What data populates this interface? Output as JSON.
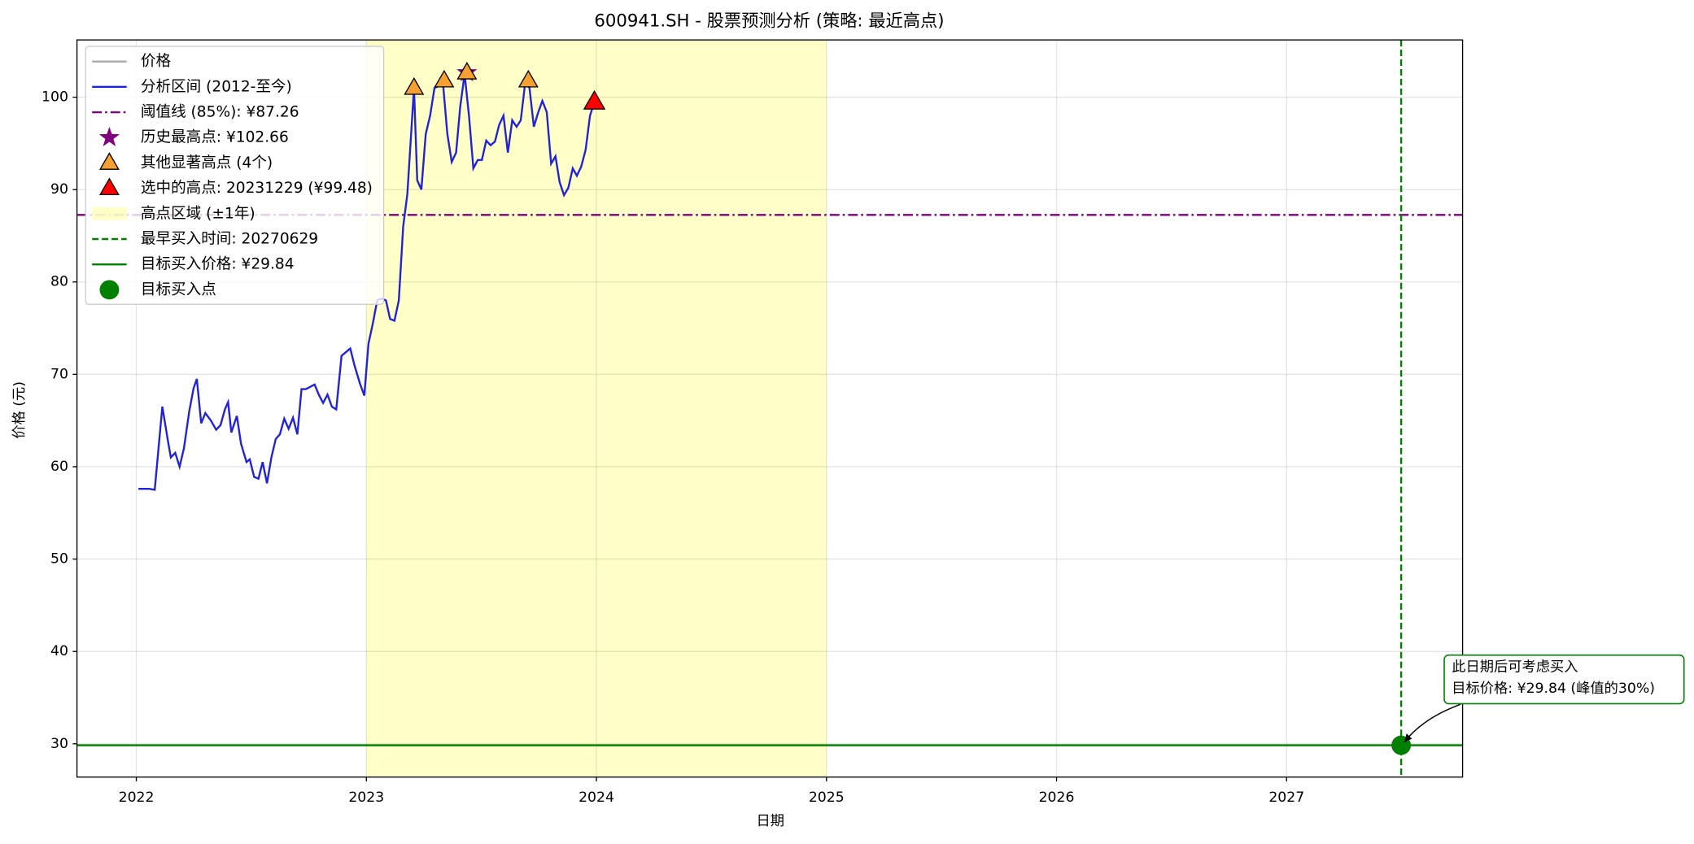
{
  "chart_data": {
    "type": "line",
    "title": "600941.SH  - 股票预测分析 (策略: 最近高点)",
    "xlabel": "日期",
    "ylabel": "价格 (元)",
    "xlim": [
      2021.742,
      2027.765
    ],
    "ylim": [
      26.4,
      106.2
    ],
    "xticks": [
      2022,
      2023,
      2024,
      2025,
      2026,
      2027
    ],
    "yticks": [
      30,
      40,
      50,
      60,
      70,
      80,
      90,
      100
    ],
    "grid": true,
    "legend_position": "upper left",
    "series": [
      {
        "color": "#2222d8",
        "x": [
          2022.009,
          2022.056,
          2022.08,
          2022.113,
          2022.136,
          2022.15,
          2022.169,
          2022.188,
          2022.207,
          2022.23,
          2022.249,
          2022.263,
          2022.282,
          2022.3,
          2022.324,
          2022.347,
          2022.366,
          2022.385,
          2022.399,
          2022.413,
          2022.437,
          2022.455,
          2022.479,
          2022.493,
          2022.512,
          2022.531,
          2022.549,
          2022.568,
          2022.587,
          2022.606,
          2022.624,
          2022.643,
          2022.662,
          2022.681,
          2022.7,
          2022.718,
          2022.737,
          2022.775,
          2022.793,
          2022.812,
          2022.831,
          2022.85,
          2022.869,
          2022.892,
          2022.93,
          2022.948,
          2022.972,
          2022.991,
          2023.009,
          2023.028,
          2023.047,
          2023.066,
          2023.085,
          2023.103,
          2023.122,
          2023.141,
          2023.16,
          2023.178,
          2023.207,
          2023.221,
          2023.239,
          2023.258,
          2023.277,
          2023.296,
          2023.315,
          2023.333,
          2023.352,
          2023.371,
          2023.39,
          2023.408,
          2023.427,
          2023.446,
          2023.465,
          2023.484,
          2023.502,
          2023.521,
          2023.54,
          2023.559,
          2023.577,
          2023.596,
          2023.615,
          2023.634,
          2023.653,
          2023.671,
          2023.69,
          2023.709,
          2023.728,
          2023.746,
          2023.765,
          2023.784,
          2023.803,
          2023.822,
          2023.84,
          2023.859,
          2023.878,
          2023.897,
          2023.915,
          2023.934,
          2023.953,
          2023.972,
          2023.991
        ],
        "values": [
          57.6,
          57.6,
          57.5,
          66.5,
          63,
          61,
          61.5,
          60,
          62,
          66,
          68.5,
          69.5,
          64.7,
          65.8,
          65,
          64,
          64.5,
          66.2,
          67,
          63.7,
          65.5,
          62.5,
          60.5,
          60.8,
          58.9,
          58.7,
          60.5,
          58.2,
          61,
          63,
          63.5,
          65.2,
          64.1,
          65.3,
          63.5,
          68.4,
          68.4,
          68.9,
          67.8,
          66.9,
          67.8,
          66.5,
          66.2,
          72,
          72.8,
          71,
          69,
          67.7,
          73.3,
          75.5,
          78,
          78.2,
          78,
          76,
          75.8,
          78,
          86,
          89.5,
          101,
          91,
          90,
          96,
          98,
          101,
          101.2,
          101.5,
          96,
          93,
          94,
          99,
          102.5,
          98,
          92.3,
          93.2,
          93.2,
          95.3,
          94.8,
          95.2,
          97,
          98,
          94,
          97.5,
          96.8,
          97.5,
          101.5,
          101,
          96.8,
          98.3,
          99.6,
          98.4,
          92.8,
          93.6,
          90.8,
          89.4,
          90.2,
          92.3,
          91.5,
          92.5,
          94.3,
          98,
          99.48
        ]
      }
    ],
    "highlight_span": {
      "x": [
        2023.0,
        2025.0
      ],
      "color": "#ffff99"
    },
    "threshold": {
      "value": 87.26,
      "color": "#800080"
    },
    "max_point": {
      "x": 2023.437,
      "value": 102.66,
      "color": "#800080"
    },
    "other_peaks": {
      "x": [
        2023.207,
        2023.338,
        2023.437,
        2023.704
      ],
      "values": [
        101,
        101.8,
        102.66,
        101.8
      ],
      "color": "#f5a030"
    },
    "selected_peak": {
      "x": 2023.991,
      "value": 99.48,
      "color": "#ff0000"
    },
    "buy_time": {
      "x": 2027.498,
      "color": "#008000"
    },
    "target_price": {
      "value": 29.84,
      "color": "#008000"
    },
    "buy_point": {
      "x": 2027.498,
      "value": 29.84,
      "color": "#008000"
    },
    "annotation": {
      "lines": [
        "此日期后可考虑买入",
        "目标价格: ¥29.84 (峰值的30%)"
      ]
    },
    "legend": [
      {
        "label": "价格",
        "kind": "line",
        "color": "#aaaaaa"
      },
      {
        "label": "分析区间 (2012-至今)",
        "kind": "line",
        "color": "#2222d8"
      },
      {
        "label": "阈值线 (85%): ¥87.26",
        "kind": "dashdot",
        "color": "#800080"
      },
      {
        "label": "历史最高点: ¥102.66",
        "kind": "star",
        "color": "#800080"
      },
      {
        "label": "其他显著高点 (4个)",
        "kind": "triangle",
        "color": "#f5a030"
      },
      {
        "label": "选中的高点: 20231229 (¥99.48)",
        "kind": "triangle",
        "color": "#ff0000"
      },
      {
        "label": "高点区域 (±1年)",
        "kind": "patch",
        "color": "#ffff99"
      },
      {
        "label": "最早买入时间: 20270629",
        "kind": "dashed",
        "color": "#008000"
      },
      {
        "label": "目标买入价格: ¥29.84",
        "kind": "line",
        "color": "#008000"
      },
      {
        "label": "目标买入点",
        "kind": "circle",
        "color": "#008000"
      }
    ]
  }
}
